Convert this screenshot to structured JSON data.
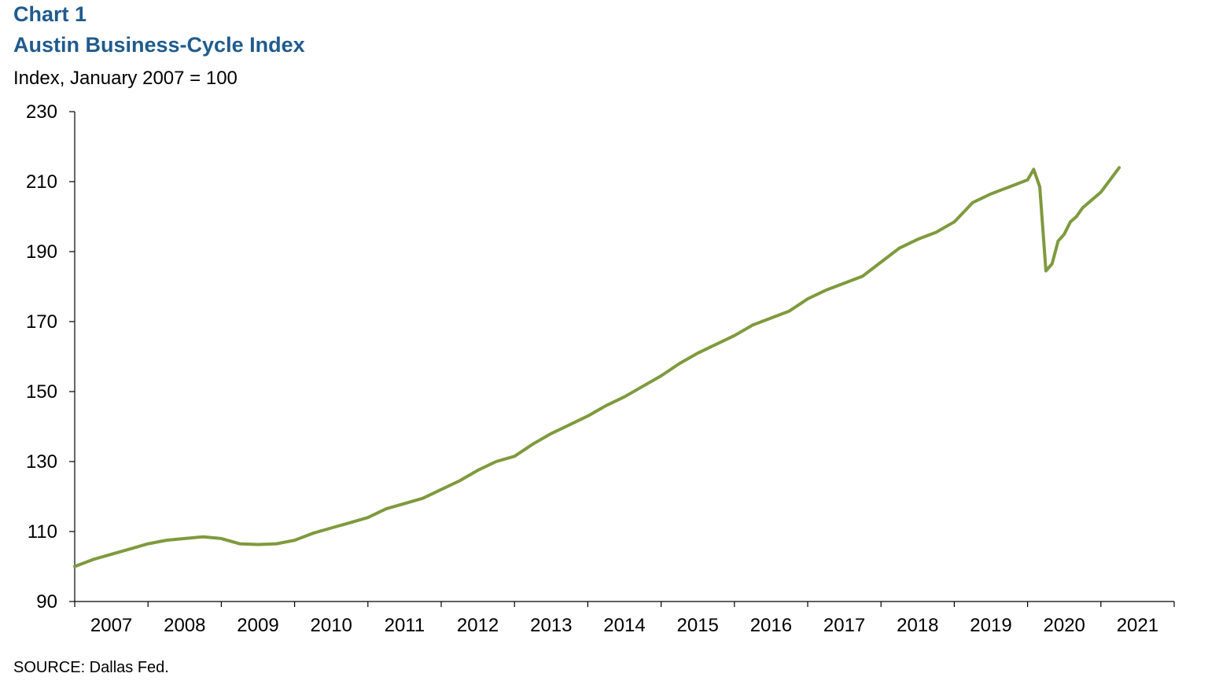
{
  "chart_data": {
    "type": "line",
    "label": "Chart 1",
    "title": "Austin Business-Cycle Index",
    "subtitle": "Index, January 2007 = 100",
    "source": "SOURCE: Dallas Fed.",
    "xlabel": "",
    "ylabel": "",
    "ylim": [
      90,
      230
    ],
    "yticks": [
      90,
      110,
      130,
      150,
      170,
      190,
      210,
      230
    ],
    "xticks": [
      "2007",
      "2008",
      "2009",
      "2010",
      "2011",
      "2012",
      "2013",
      "2014",
      "2015",
      "2016",
      "2017",
      "2018",
      "2019",
      "2020",
      "2021"
    ],
    "grid": false,
    "legend": "none",
    "line_color": "#7f9a3e",
    "series": [
      {
        "name": "",
        "x": [
          "2007-01",
          "2007-04",
          "2007-07",
          "2007-10",
          "2008-01",
          "2008-04",
          "2008-07",
          "2008-10",
          "2009-01",
          "2009-04",
          "2009-07",
          "2009-10",
          "2010-01",
          "2010-04",
          "2010-07",
          "2010-10",
          "2011-01",
          "2011-04",
          "2011-07",
          "2011-10",
          "2012-01",
          "2012-04",
          "2012-07",
          "2012-10",
          "2013-01",
          "2013-04",
          "2013-07",
          "2013-10",
          "2014-01",
          "2014-04",
          "2014-07",
          "2014-10",
          "2015-01",
          "2015-04",
          "2015-07",
          "2015-10",
          "2016-01",
          "2016-04",
          "2016-07",
          "2016-10",
          "2017-01",
          "2017-04",
          "2017-07",
          "2017-10",
          "2018-01",
          "2018-04",
          "2018-07",
          "2018-10",
          "2019-01",
          "2019-04",
          "2019-07",
          "2019-10",
          "2020-01",
          "2020-02",
          "2020-03",
          "2020-04",
          "2020-05",
          "2020-06",
          "2020-07",
          "2020-08",
          "2020-09",
          "2020-10",
          "2021-01",
          "2021-04"
        ],
        "values": [
          100,
          102,
          103.5,
          105,
          106.5,
          107.5,
          108,
          108.5,
          108,
          106.5,
          106.3,
          106.5,
          107.5,
          109.5,
          111,
          112.5,
          114,
          116.5,
          118,
          119.5,
          122,
          124.5,
          127.5,
          130,
          131.5,
          135,
          138,
          140.5,
          143,
          146,
          148.5,
          151.5,
          154.5,
          158,
          161,
          163.5,
          166,
          169,
          171,
          173,
          176.5,
          179,
          181,
          183,
          187,
          191,
          193.5,
          195.5,
          198.5,
          204,
          206.5,
          208.5,
          210.5,
          213.5,
          208.5,
          184.5,
          186.5,
          193,
          195,
          198.5,
          200,
          202.5,
          207,
          214
        ]
      }
    ]
  }
}
